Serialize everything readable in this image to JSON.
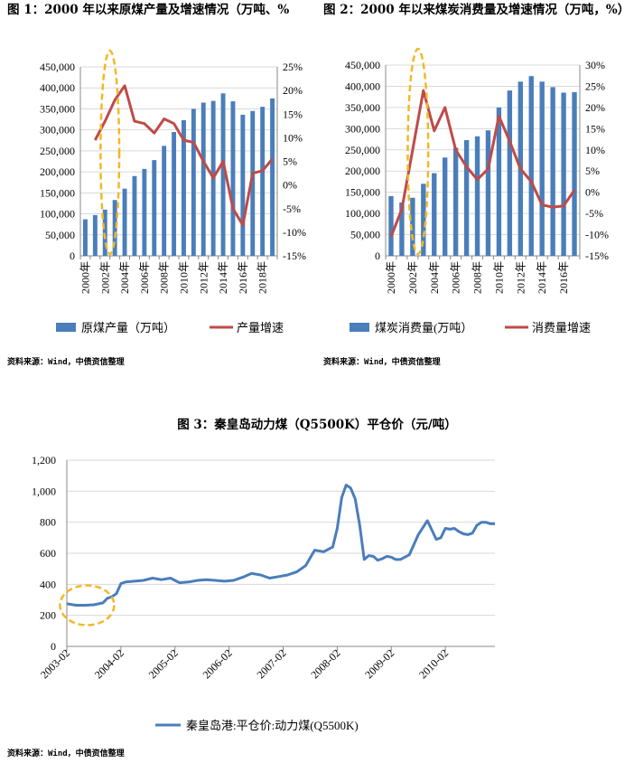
{
  "chart_data": [
    {
      "type": "bar",
      "title": "图 1：2000 年以来原煤产量及增速情况（万吨、%",
      "categories": [
        "2000年",
        "2001年",
        "2002年",
        "2003年",
        "2004年",
        "2005年",
        "2006年",
        "2007年",
        "2008年",
        "2009年",
        "2010年",
        "2011年",
        "2012年",
        "2013年",
        "2014年",
        "2015年",
        "2016年",
        "2017年",
        "2018年",
        "2019年"
      ],
      "tick_labels": [
        "2000年",
        "2002年",
        "2004年",
        "2006年",
        "2008年",
        "2010年",
        "2012年",
        "2014年",
        "2016年",
        "2018年"
      ],
      "series": [
        {
          "name": "原煤产量（万吨）",
          "type": "bar",
          "axis": "left",
          "color": "#4a7ebb",
          "values": [
            87000,
            97000,
            110000,
            133000,
            160000,
            190000,
            207000,
            228000,
            262000,
            295000,
            323000,
            350000,
            365000,
            369000,
            387000,
            368000,
            336000,
            345000,
            355000,
            375000
          ]
        },
        {
          "name": "产量增速",
          "type": "line",
          "axis": "right",
          "color": "#be4b48",
          "values": [
            null,
            9.5,
            13.5,
            18,
            21,
            13.5,
            13,
            11,
            14,
            13,
            9.5,
            9,
            5,
            1.5,
            5,
            -5,
            -8.5,
            2.5,
            3,
            5.5
          ]
        }
      ],
      "y_left": {
        "range": [
          0,
          450000
        ],
        "ticks": [
          "0",
          "50,000",
          "100,000",
          "150,000",
          "200,000",
          "250,000",
          "300,000",
          "350,000",
          "400,000",
          "450,000"
        ]
      },
      "y_right": {
        "range": [
          -15,
          25
        ],
        "ticks": [
          "-15%",
          "-10%",
          "-5%",
          "0%",
          "5%",
          "10%",
          "15%",
          "20%",
          "25%"
        ]
      },
      "legend": [
        "原煤产量（万吨）",
        "产量增速"
      ],
      "source": "资料来源：Wind，中债资信整理"
    },
    {
      "type": "bar",
      "title": "图 2：2000 年以来煤炭消费量及增速情况（万吨，%）",
      "categories": [
        "2000年",
        "2001年",
        "2002年",
        "2003年",
        "2004年",
        "2005年",
        "2006年",
        "2007年",
        "2008年",
        "2009年",
        "2010年",
        "2011年",
        "2012年",
        "2013年",
        "2014年",
        "2015年",
        "2016年",
        "2017年"
      ],
      "tick_labels": [
        "2000年",
        "2002年",
        "2004年",
        "2006年",
        "2008年",
        "2010年",
        "2012年",
        "2014年",
        "2016年"
      ],
      "series": [
        {
          "name": "煤炭消费量(万吨）",
          "type": "bar",
          "axis": "left",
          "color": "#4a7ebb",
          "values": [
            141000,
            126000,
            137000,
            170000,
            195000,
            232000,
            255000,
            273000,
            282000,
            296000,
            350000,
            390000,
            411000,
            424000,
            411000,
            398000,
            385000,
            386000
          ]
        },
        {
          "name": "消费量增速",
          "type": "line",
          "axis": "right",
          "color": "#be4b48",
          "values": [
            -10.5,
            -4,
            10,
            24,
            14.5,
            20,
            10,
            6,
            3,
            5.5,
            18,
            12,
            5.5,
            2.5,
            -3,
            -3.5,
            -3.2,
            0.5
          ]
        }
      ],
      "y_left": {
        "range": [
          0,
          450000
        ],
        "ticks": [
          "0",
          "50,000",
          "100,000",
          "150,000",
          "200,000",
          "250,000",
          "300,000",
          "350,000",
          "400,000",
          "450,000"
        ]
      },
      "y_right": {
        "range": [
          -15,
          30
        ],
        "ticks": [
          "-15%",
          "-10%",
          "-5%",
          "0%",
          "5%",
          "10%",
          "15%",
          "20%",
          "25%",
          "30%"
        ]
      },
      "legend": [
        "煤炭消费量(万吨）",
        "消费量增速"
      ],
      "source": "资料来源：Wind，中债资信整理"
    },
    {
      "type": "line",
      "title": "图 3：秦皇岛动力煤（Q5500K）平仓价（元/吨）",
      "x_range": [
        0,
        95
      ],
      "x_ticks": [
        "2003-02",
        "2004-02",
        "2005-02",
        "2006-02",
        "2007-02",
        "2008-02",
        "2009-02",
        "2010-02"
      ],
      "y_range": [
        0,
        1200
      ],
      "y_ticks": [
        "0",
        "200",
        "400",
        "600",
        "800",
        "1,000",
        "1,200"
      ],
      "series": [
        {
          "name": "秦皇岛港:平仓价:动力煤(Q5500K)",
          "color": "#4a7ebb",
          "x": [
            0,
            2,
            4,
            6,
            8,
            9,
            10,
            11,
            12,
            13,
            15,
            17,
            19,
            21,
            23,
            24,
            25,
            27,
            29,
            31,
            33,
            35,
            37,
            39,
            41,
            43,
            45,
            47,
            49,
            51,
            53,
            55,
            57,
            59,
            60,
            61,
            62,
            63,
            64,
            65,
            66,
            67,
            68,
            69,
            70,
            71,
            72,
            73,
            74,
            76,
            78,
            80,
            82,
            83,
            84,
            85,
            86,
            87,
            88,
            89,
            90,
            91,
            92,
            93,
            94,
            95
          ],
          "y": [
            275,
            265,
            265,
            268,
            280,
            310,
            320,
            340,
            405,
            415,
            420,
            425,
            440,
            430,
            440,
            425,
            410,
            415,
            425,
            430,
            425,
            420,
            425,
            445,
            470,
            460,
            440,
            450,
            460,
            480,
            520,
            620,
            610,
            640,
            760,
            960,
            1040,
            1020,
            950,
            780,
            560,
            585,
            580,
            555,
            565,
            580,
            575,
            560,
            560,
            590,
            720,
            810,
            690,
            700,
            760,
            755,
            760,
            740,
            725,
            720,
            730,
            780,
            800,
            800,
            790,
            790
          ]
        }
      ],
      "legend": [
        "秦皇岛港:平仓价:动力煤(Q5500K)"
      ],
      "source": "资料来源：Wind，中债资信整理"
    }
  ]
}
